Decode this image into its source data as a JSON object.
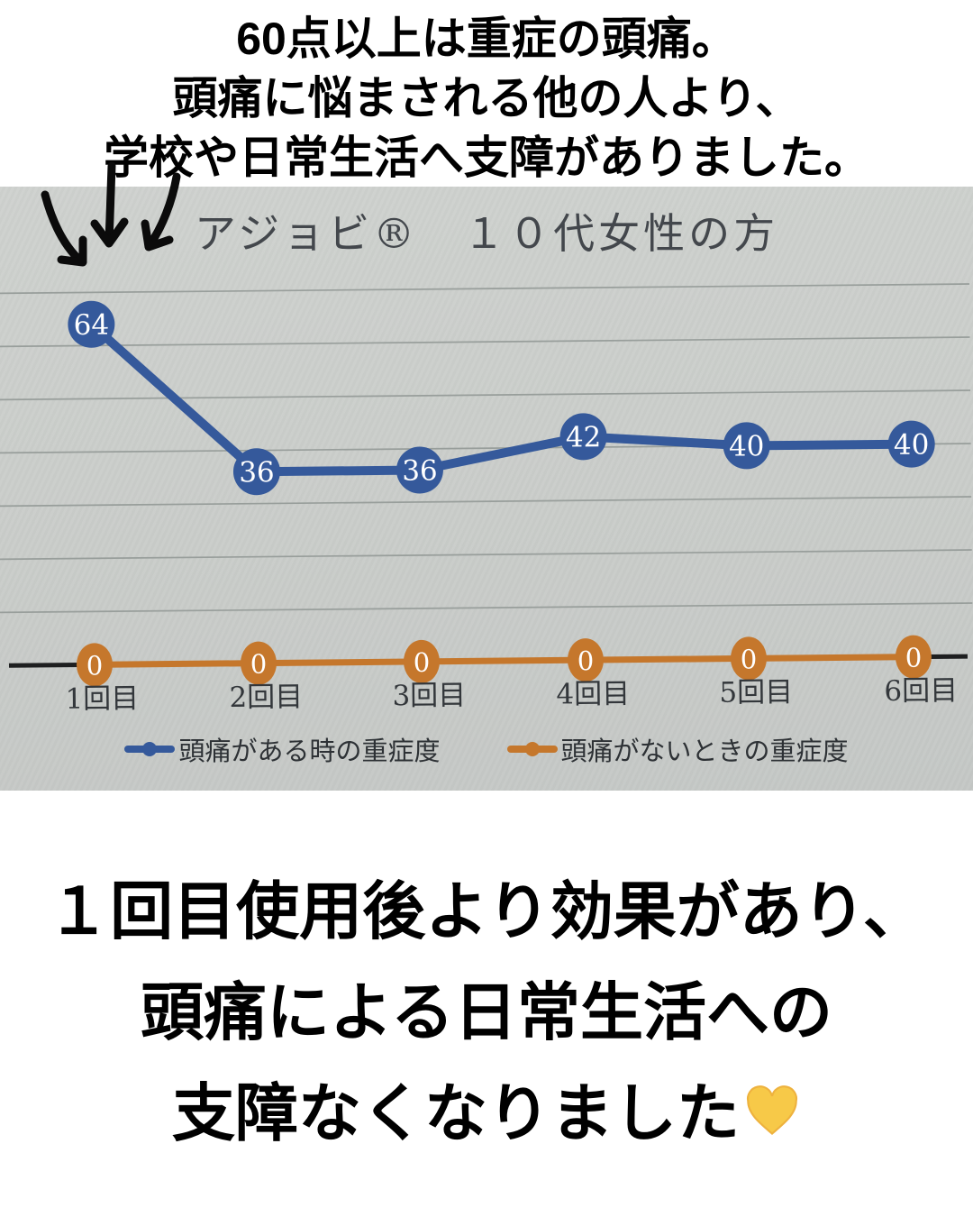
{
  "top_caption": {
    "lines": [
      "60点以上は重症の頭痛。",
      "頭痛に悩まされる他の人より、",
      "学校や日常生活へ支障がありました。"
    ]
  },
  "chart_data": {
    "type": "line",
    "title": "アジョビ®　１０代女性の方",
    "categories": [
      "1回目",
      "2回目",
      "3回目",
      "4回目",
      "5回目",
      "6回目"
    ],
    "series": [
      {
        "name": "頭痛がある時の重症度",
        "color": "#35599b",
        "values": [
          64,
          36,
          36,
          42,
          40,
          40
        ]
      },
      {
        "name": "頭痛がないときの重症度",
        "color": "#c5772c",
        "values": [
          0,
          0,
          0,
          0,
          0,
          0
        ]
      }
    ],
    "ylim": [
      0,
      80
    ],
    "gridlines": "horizontal, every 10 points, no y tick labels",
    "legend_position": "bottom",
    "data_labels": true,
    "axis_color": "#1e1f20",
    "background_color": "#c9ccc9",
    "annotation": "three hand-drawn arrows pointing at first data point (64)"
  },
  "bottom_caption": {
    "lines": [
      "１回目使用後より効果があり、",
      "頭痛による日常生活への",
      "支障なくなりました"
    ],
    "heart_emoji": "💛"
  }
}
